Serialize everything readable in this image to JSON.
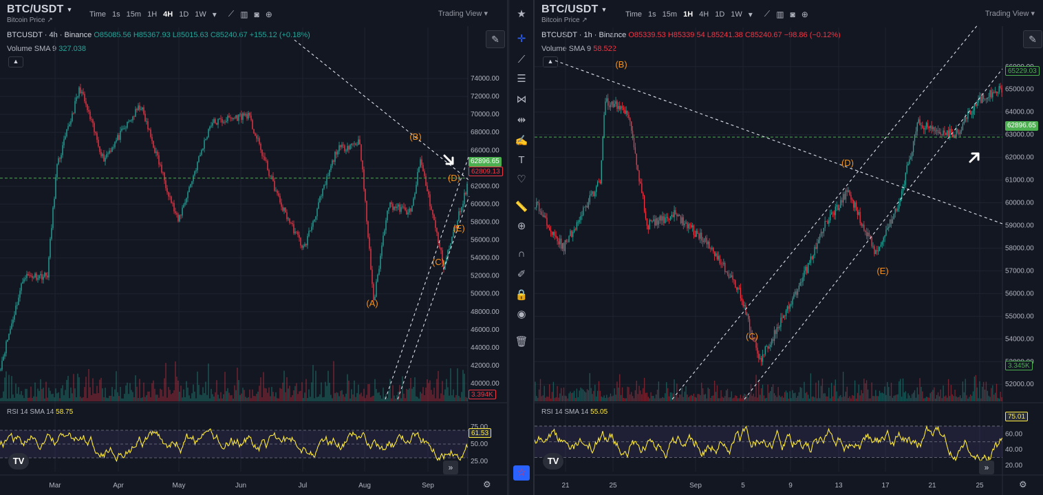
{
  "left": {
    "symbol": "BTC/USDT",
    "subtitle": "Bitcoin Price",
    "timeframes": [
      "Time",
      "1s",
      "15m",
      "1H",
      "4H",
      "1D",
      "1W"
    ],
    "active_tf": "4H",
    "trading_view": "Trading View",
    "legend": {
      "name": "BTCUSDT · 4h · Binance",
      "o": "O85085.56",
      "h": "H85367.93",
      "l": "L85015.63",
      "c": "C85240.67",
      "chg": "+155.12 (+0.18%)"
    },
    "volume_label": "Volume SMA 9",
    "volume_value": "327.038",
    "rsi_label": "RSI 14 SMA 14",
    "rsi_value": "58.75",
    "price_tag_green": "62896.65",
    "price_tag_red": "62809.13",
    "vol_tag": "3.394K",
    "rsi_tag": "61.53",
    "wave_labels": [
      "(A)",
      "(B)",
      "(C)",
      "(D)",
      "(E)"
    ]
  },
  "right": {
    "symbol": "BTC/USDT",
    "subtitle": "Bitcoin Price",
    "timeframes": [
      "Time",
      "1s",
      "15m",
      "1H",
      "4H",
      "1D",
      "1W"
    ],
    "active_tf": "1H",
    "trading_view": "Trading View",
    "legend": {
      "name": "BTCUSDT · 1h · Binance",
      "o": "O85339.53",
      "h": "H85339.54",
      "l": "L85241.38",
      "c": "C85240.67",
      "chg": "−98.86 (−0.12%)"
    },
    "volume_label": "Volume SMA 9",
    "volume_value": "58.522",
    "rsi_label": "RSI 14 SMA 14",
    "rsi_value": "55.05",
    "price_tag_top": "65229.03",
    "price_tag_green": "62896.65",
    "vol_tag": "3.345K",
    "rsi_tag": "75.01",
    "wave_labels": [
      "(B)",
      "(C)",
      "(D)",
      "(E)"
    ]
  },
  "colors": {
    "up": "#26a69a",
    "down": "#f23645",
    "wave": "#f7931a",
    "rsi": "#ffeb3b",
    "bg": "#131722"
  },
  "icons": [
    "crosshair-icon",
    "trendline-icon",
    "fib-icon",
    "pattern-icon",
    "forecast-icon",
    "brush-icon",
    "text-icon",
    "heart-icon",
    "ruler-icon",
    "zoom-in-icon",
    "magnet-icon",
    "lock-drawing-icon",
    "lock-icon",
    "eye-icon",
    "trash-icon",
    "star-icon"
  ],
  "chart_data": [
    {
      "type": "candlestick",
      "title": "BTCUSDT · 4h · Binance",
      "x_ticks": [
        "Mar",
        "Apr",
        "May",
        "Jun",
        "Jul",
        "Aug",
        "Sep"
      ],
      "y_ticks": [
        "74000.00",
        "72000.00",
        "70000.00",
        "68000.00",
        "66000.00",
        "64000.00",
        "62000.00",
        "60000.00",
        "58000.00",
        "56000.00",
        "54000.00",
        "52000.00",
        "50000.00",
        "48000.00",
        "46000.00",
        "44000.00",
        "42000.00",
        "40000.00"
      ],
      "ylim": [
        39000,
        76000
      ],
      "rsi_ticks": [
        "75.00",
        "50.00",
        "25.00"
      ],
      "wave_points": [
        {
          "label": "(A)",
          "x": "2024-08-05",
          "y": 49500
        },
        {
          "label": "(B)",
          "x": "2024-08-25",
          "y": 65000
        },
        {
          "label": "(C)",
          "x": "2024-09-06",
          "y": 53000
        },
        {
          "label": "(D)",
          "x": "2024-09-13",
          "y": 61000
        },
        {
          "label": "(E)",
          "x": "2024-09-17",
          "y": 57500
        }
      ],
      "current_price": 62896.65
    },
    {
      "type": "candlestick",
      "title": "BTCUSDT · 1h · Binance",
      "x_ticks": [
        "21",
        "25",
        "Sep",
        "5",
        "9",
        "13",
        "17",
        "21",
        "25"
      ],
      "y_ticks": [
        "66000.00",
        "65000.00",
        "64000.00",
        "63000.00",
        "62000.00",
        "61000.00",
        "60000.00",
        "59000.00",
        "58000.00",
        "57000.00",
        "56000.00",
        "55000.00",
        "54000.00",
        "53000.00",
        "52000.00"
      ],
      "ylim": [
        51400,
        66600
      ],
      "rsi_ticks": [
        "60.00",
        "40.00",
        "20.00"
      ],
      "wave_points": [
        {
          "label": "(B)",
          "x": "2024-08-25",
          "y": 65000
        },
        {
          "label": "(C)",
          "x": "2024-09-06",
          "y": 52700
        },
        {
          "label": "(D)",
          "x": "2024-09-13",
          "y": 60800
        },
        {
          "label": "(E)",
          "x": "2024-09-17",
          "y": 57600
        }
      ],
      "current_price": 62896.65
    }
  ]
}
